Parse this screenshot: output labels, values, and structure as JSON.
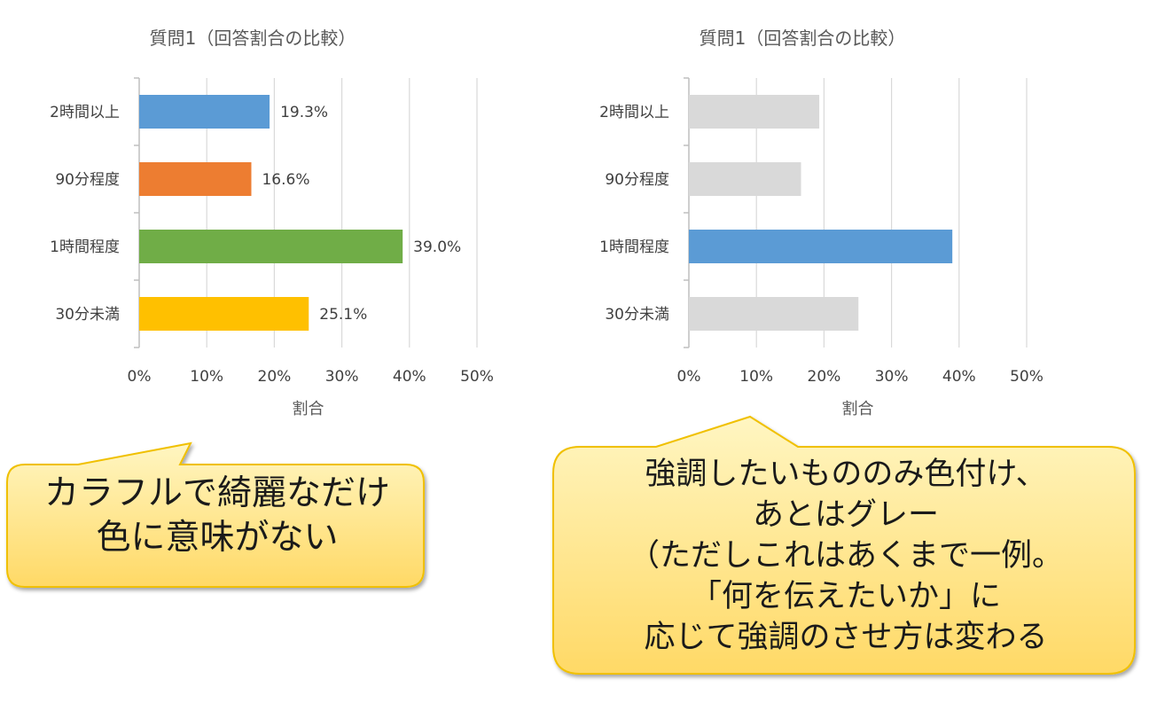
{
  "charts": [
    {
      "id": "chart-left",
      "chart_data": {
        "type": "bar",
        "orientation": "horizontal",
        "title": "質問1（回答割合の比較）",
        "xlabel": "割合",
        "ylabel": "",
        "categories": [
          "2時間以上",
          "90分程度",
          "1時間程度",
          "30分未満"
        ],
        "values": [
          19.3,
          16.6,
          39.0,
          25.1
        ],
        "value_labels": [
          "19.3%",
          "16.6%",
          "39.0%",
          "25.1%"
        ],
        "xlim": [
          0,
          50
        ],
        "x_ticks": [
          "0%",
          "10%",
          "20%",
          "30%",
          "40%",
          "50%"
        ],
        "grid": true,
        "bar_colors": [
          "#5b9bd5",
          "#ed7d31",
          "#70ad47",
          "#ffc000"
        ]
      }
    },
    {
      "id": "chart-right",
      "chart_data": {
        "type": "bar",
        "orientation": "horizontal",
        "title": "質問1（回答割合の比較）",
        "xlabel": "割合",
        "ylabel": "",
        "categories": [
          "2時間以上",
          "90分程度",
          "1時間程度",
          "30分未満"
        ],
        "values": [
          19.3,
          16.6,
          39.0,
          25.1
        ],
        "value_labels": [],
        "xlim": [
          0,
          50
        ],
        "x_ticks": [
          "0%",
          "10%",
          "20%",
          "30%",
          "40%",
          "50%"
        ],
        "grid": true,
        "bar_colors": [
          "#d9d9d9",
          "#d9d9d9",
          "#5b9bd5",
          "#d9d9d9"
        ]
      }
    }
  ],
  "callouts": {
    "left": {
      "lines": [
        "カラフルで綺麗なだけ",
        "色に意味がない"
      ],
      "fill_top": "#fff6c2",
      "fill_bottom": "#ffd966",
      "border": "#f0c000"
    },
    "right": {
      "lines": [
        "強調したいもののみ色付け、",
        "あとはグレー",
        "（ただしこれはあくまで一例。",
        "「何を伝えたいか」に",
        "応じて強調のさせ方は変わる"
      ],
      "fill_top": "#fff6c2",
      "fill_bottom": "#ffd966",
      "border": "#f0c000"
    }
  }
}
